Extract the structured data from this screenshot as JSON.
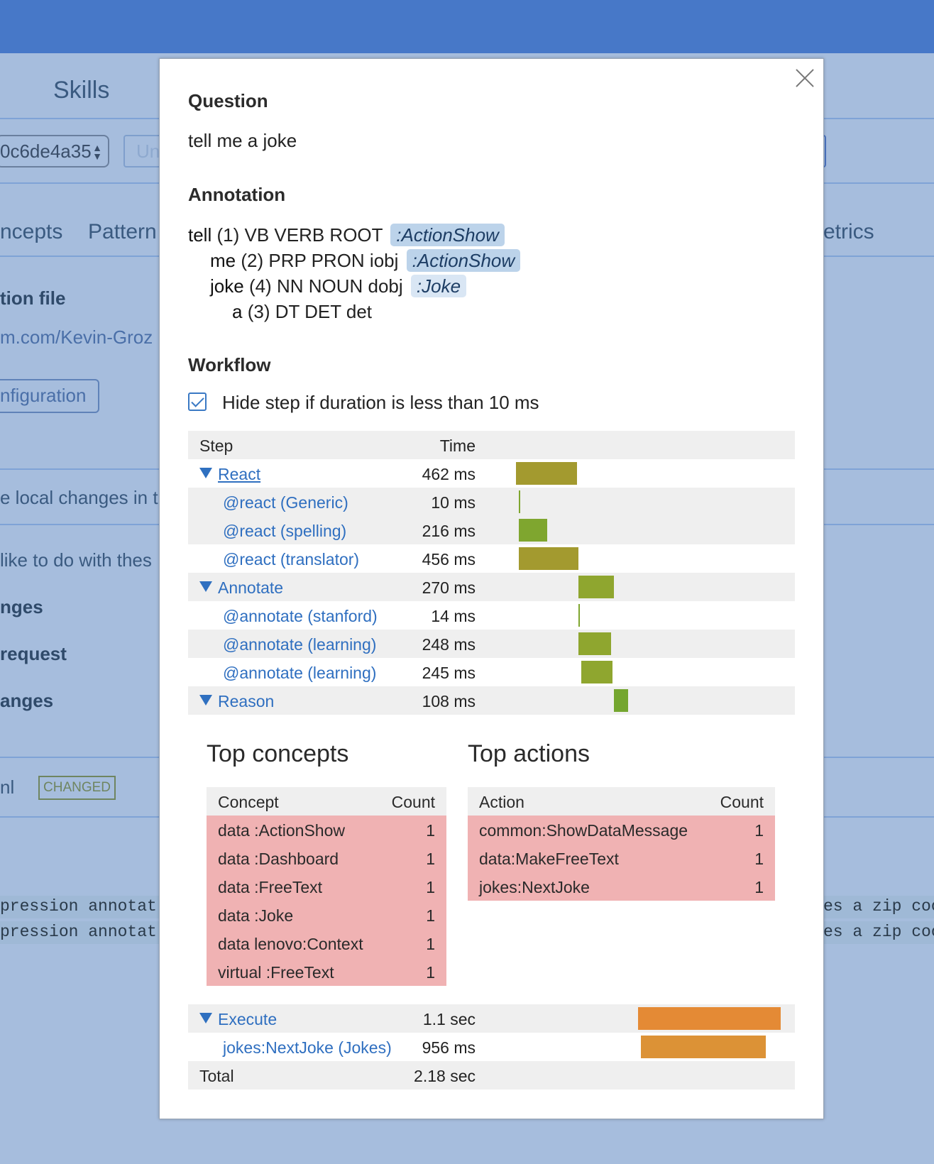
{
  "background": {
    "tab_skills": "Skills",
    "select_value": "0c6de4a35",
    "input_placeholder": "Un",
    "tab_concepts": "ncepts",
    "tab_patterns": "Pattern",
    "tab_metrics": "etrics",
    "section_file": "tion file",
    "repo_link": "m.com/Kevin-Groz",
    "config_button": "nfiguration",
    "local_changes": "e local changes in th",
    "question": "like to do with thes",
    "option1": "nges",
    "option2": "request",
    "option3": "anges",
    "file_suffix": "nl",
    "changed_badge": "CHANGED",
    "code_line_1_left": "pression annotat",
    "code_line_1_right": "es a zip coo",
    "code_line_2_left": "pression annotat",
    "code_line_2_right": "es a zip coo"
  },
  "modal": {
    "question_title": "Question",
    "question_text": "tell me a joke",
    "annotation_title": "Annotation",
    "annotation": [
      {
        "word": "tell",
        "rest": "(1) VB VERB ROOT",
        "tag": ":ActionShow",
        "tag_style": "dark"
      },
      {
        "word": "me",
        "rest": "(2) PRP PRON iobj",
        "tag": ":ActionShow",
        "tag_style": "dark"
      },
      {
        "word": "joke",
        "rest": "(4) NN NOUN dobj",
        "tag": ":Joke",
        "tag_style": "light"
      },
      {
        "word": "a",
        "rest": "(3) DT DET det",
        "tag": "",
        "tag_style": ""
      }
    ],
    "workflow_title": "Workflow",
    "hide_step_label": "Hide step if duration is less than 10 ms",
    "hide_step_checked": true,
    "workflow": {
      "header": {
        "step": "Step",
        "time": "Time"
      },
      "rows": [
        {
          "step": "React",
          "time": "462 ms",
          "group": true,
          "bar_color": "#a39a2f"
        },
        {
          "step": "@react (Generic)",
          "time": "10 ms",
          "group": false,
          "bar_color": "#7fa62f"
        },
        {
          "step": "@react (spelling)",
          "time": "216 ms",
          "group": false,
          "bar_color": "#7fa62f"
        },
        {
          "step": "@react (translator)",
          "time": "456 ms",
          "group": false,
          "bar_color": "#a39a2f"
        },
        {
          "step": "Annotate",
          "time": "270 ms",
          "group": true,
          "bar_color": "#8fa62f"
        },
        {
          "step": "@annotate (stanford)",
          "time": "14 ms",
          "group": false,
          "bar_color": "#7fa62f"
        },
        {
          "step": "@annotate (learning)",
          "time": "248 ms",
          "group": false,
          "bar_color": "#8fa62f"
        },
        {
          "step": "@annotate (learning)",
          "time": "245 ms",
          "group": false,
          "bar_color": "#8fa62f"
        },
        {
          "step": "Reason",
          "time": "108 ms",
          "group": true,
          "bar_color": "#74a62f"
        }
      ]
    },
    "top_concepts": {
      "title": "Top concepts",
      "header": {
        "col1": "Concept",
        "col2": "Count"
      },
      "rows": [
        {
          "name": "data :ActionShow",
          "count": "1"
        },
        {
          "name": "data :Dashboard",
          "count": "1"
        },
        {
          "name": "data :FreeText",
          "count": "1"
        },
        {
          "name": "data :Joke",
          "count": "1"
        },
        {
          "name": "data lenovo:Context",
          "count": "1"
        },
        {
          "name": "virtual :FreeText",
          "count": "1"
        }
      ]
    },
    "top_actions": {
      "title": "Top actions",
      "header": {
        "col1": "Action",
        "col2": "Count"
      },
      "rows": [
        {
          "name": "common:ShowDataMessage",
          "count": "1"
        },
        {
          "name": "data:MakeFreeText",
          "count": "1"
        },
        {
          "name": "jokes:NextJoke",
          "count": "1"
        }
      ]
    },
    "execute": {
      "rows": [
        {
          "step": "Execute",
          "time": "1.1 sec",
          "group": true,
          "bar_color": "#e48a35"
        },
        {
          "step": "jokes:NextJoke (Jokes)",
          "time": "956 ms",
          "group": false,
          "bar_color": "#dc9236"
        }
      ],
      "total_label": "Total",
      "total_time": "2.18 sec"
    }
  }
}
